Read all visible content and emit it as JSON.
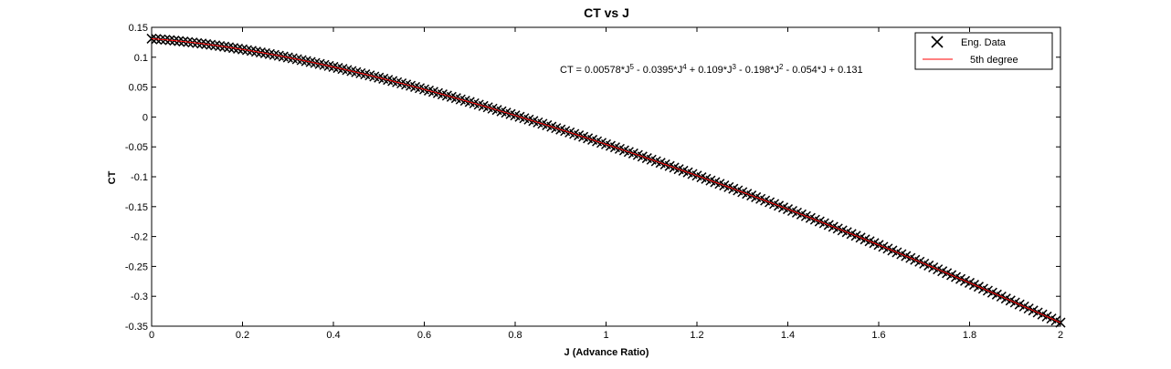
{
  "chart_data": {
    "type": "scatter",
    "title": "CT vs J",
    "xlabel": "J (Advance Ratio)",
    "ylabel": "CT",
    "xlim": [
      0,
      2
    ],
    "ylim": [
      -0.35,
      0.15
    ],
    "xticks": [
      0,
      0.2,
      0.4,
      0.6,
      0.8,
      1,
      1.2,
      1.4,
      1.6,
      1.8,
      2
    ],
    "xtick_labels": [
      "0",
      "0.2",
      "0.4",
      "0.6",
      "0.8",
      "1",
      "1.2",
      "1.4",
      "1.6",
      "1.8",
      "2"
    ],
    "yticks": [
      0.15,
      0.1,
      0.05,
      0,
      -0.05,
      -0.1,
      -0.15,
      -0.2,
      -0.25,
      -0.3,
      -0.35
    ],
    "ytick_labels": [
      "0.15",
      "0.1",
      "0.05",
      "0",
      "-0.05",
      "-0.1",
      "-0.15",
      "-0.2",
      "-0.25",
      "-0.3",
      "-0.35"
    ],
    "grid": false,
    "legend_position": "top-right",
    "series": [
      {
        "name": "Eng. Data",
        "marker": "x",
        "color": "#000000",
        "x": [
          0,
          0.1,
          0.2,
          0.3,
          0.4,
          0.5,
          0.6,
          0.7,
          0.8,
          0.9,
          1.0,
          1.1,
          1.2,
          1.3,
          1.4,
          1.5,
          1.6,
          1.7,
          1.8,
          1.9,
          2.0
        ],
        "y": [
          0.131,
          0.124,
          0.115,
          0.104,
          0.091,
          0.075,
          0.058,
          0.038,
          0.017,
          -0.006,
          -0.031,
          -0.057,
          -0.083,
          -0.111,
          -0.139,
          -0.168,
          -0.197,
          -0.226,
          -0.257,
          -0.288,
          -0.32
        ]
      },
      {
        "name": "5th degree",
        "type": "line",
        "color": "#ff0000",
        "coefficients": [
          0.00578,
          -0.0395,
          0.109,
          -0.198,
          -0.054,
          0.131
        ]
      }
    ],
    "annotation": {
      "parts": [
        {
          "text": "CT = 0.00578*J"
        },
        {
          "text": "5",
          "sup": true
        },
        {
          "text": " - 0.0395*J"
        },
        {
          "text": "4",
          "sup": true
        },
        {
          "text": " + 0.109*J"
        },
        {
          "text": "3",
          "sup": true
        },
        {
          "text": " - 0.198*J"
        },
        {
          "text": "2",
          "sup": true
        },
        {
          "text": " - 0.054*J + 0.131"
        }
      ]
    }
  }
}
